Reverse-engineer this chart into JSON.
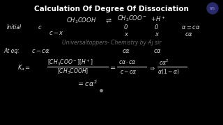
{
  "background_color": "#000000",
  "title": "Calculation Of Degree Of Dissociation",
  "title_color": "#ffffff",
  "title_fontsize": 7.5,
  "title_fontstyle": "bold",
  "watermark": "Universaltoppers- Chemistry by Aj sir",
  "watermark_color": "#bbbbbb",
  "watermark_alpha": 0.55,
  "badge_text": "6/6",
  "badge_bg": "#2a2a6a",
  "badge_text_color": "#9999ff",
  "text_color": "#dddddd"
}
